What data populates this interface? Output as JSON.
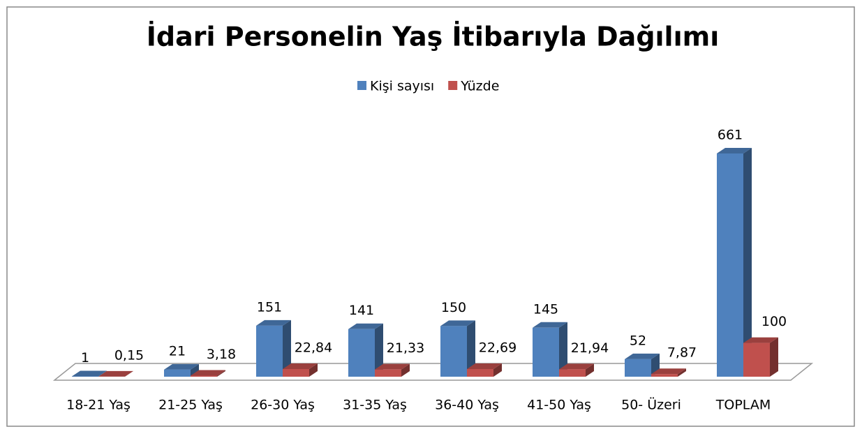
{
  "chart_data": {
    "type": "bar3d",
    "title": "İdari Personelin Yaş İtibarıyla Dağılımı",
    "categories": [
      "18-21 Yaş",
      "21-25 Yaş",
      "26-30 Yaş",
      "31-35 Yaş",
      "36-40 Yaş",
      "41-50 Yaş",
      "50- Üzeri",
      "TOPLAM"
    ],
    "series": [
      {
        "name": "Kişi sayısı",
        "color": "#4f81bd",
        "values": [
          1,
          21,
          151,
          141,
          150,
          145,
          52,
          661
        ]
      },
      {
        "name": "Yüzde",
        "color": "#c0504d",
        "values": [
          0.15,
          3.18,
          22.84,
          21.33,
          22.69,
          21.94,
          7.87,
          100
        ],
        "value_labels": [
          "0,15",
          "3,18",
          "22,84",
          "21,33",
          "22,69",
          "21,94",
          "7,87",
          "100"
        ]
      }
    ],
    "legend": "top"
  }
}
